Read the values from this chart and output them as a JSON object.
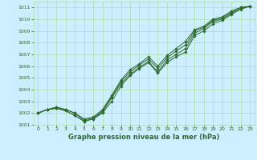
{
  "xlabel": "Graphe pression niveau de la mer (hPa)",
  "ylim": [
    1001,
    1011.5
  ],
  "xlim": [
    -0.5,
    23.5
  ],
  "yticks": [
    1001,
    1002,
    1003,
    1004,
    1005,
    1006,
    1007,
    1008,
    1009,
    1010,
    1011
  ],
  "xticks": [
    0,
    1,
    2,
    3,
    4,
    5,
    6,
    7,
    8,
    9,
    10,
    11,
    12,
    13,
    14,
    15,
    16,
    17,
    18,
    19,
    20,
    21,
    22,
    23
  ],
  "bg_color": "#cceeff",
  "line_color": "#2d6a2d",
  "grid_color": "#aaddaa",
  "lines": [
    [
      1002.0,
      1002.3,
      1002.4,
      1002.2,
      1001.8,
      1001.3,
      1001.5,
      1002.1,
      1003.3,
      1004.5,
      1005.3,
      1005.9,
      1006.4,
      1005.5,
      1006.5,
      1007.0,
      1007.5,
      1008.8,
      1009.2,
      1009.8,
      1010.0,
      1010.5,
      1010.9,
      1011.1
    ],
    [
      1002.0,
      1002.3,
      1002.5,
      1002.3,
      1002.0,
      1001.4,
      1001.6,
      1002.2,
      1003.4,
      1004.7,
      1005.5,
      1006.1,
      1006.6,
      1005.8,
      1006.7,
      1007.3,
      1007.8,
      1009.0,
      1009.3,
      1009.9,
      1010.1,
      1010.6,
      1011.0,
      1011.1
    ],
    [
      1002.0,
      1002.3,
      1002.5,
      1002.3,
      1002.0,
      1001.5,
      1001.65,
      1002.3,
      1003.5,
      1004.8,
      1005.7,
      1006.2,
      1006.8,
      1006.0,
      1006.9,
      1007.5,
      1008.1,
      1009.1,
      1009.4,
      1010.0,
      1010.2,
      1010.7,
      1011.0,
      1011.1
    ],
    [
      1002.0,
      1002.3,
      1002.4,
      1002.2,
      1001.8,
      1001.3,
      1001.5,
      1002.0,
      1003.0,
      1004.3,
      1005.2,
      1005.8,
      1006.3,
      1005.4,
      1006.3,
      1006.8,
      1007.2,
      1008.6,
      1009.0,
      1009.6,
      1009.9,
      1010.4,
      1010.85,
      1011.1
    ]
  ]
}
